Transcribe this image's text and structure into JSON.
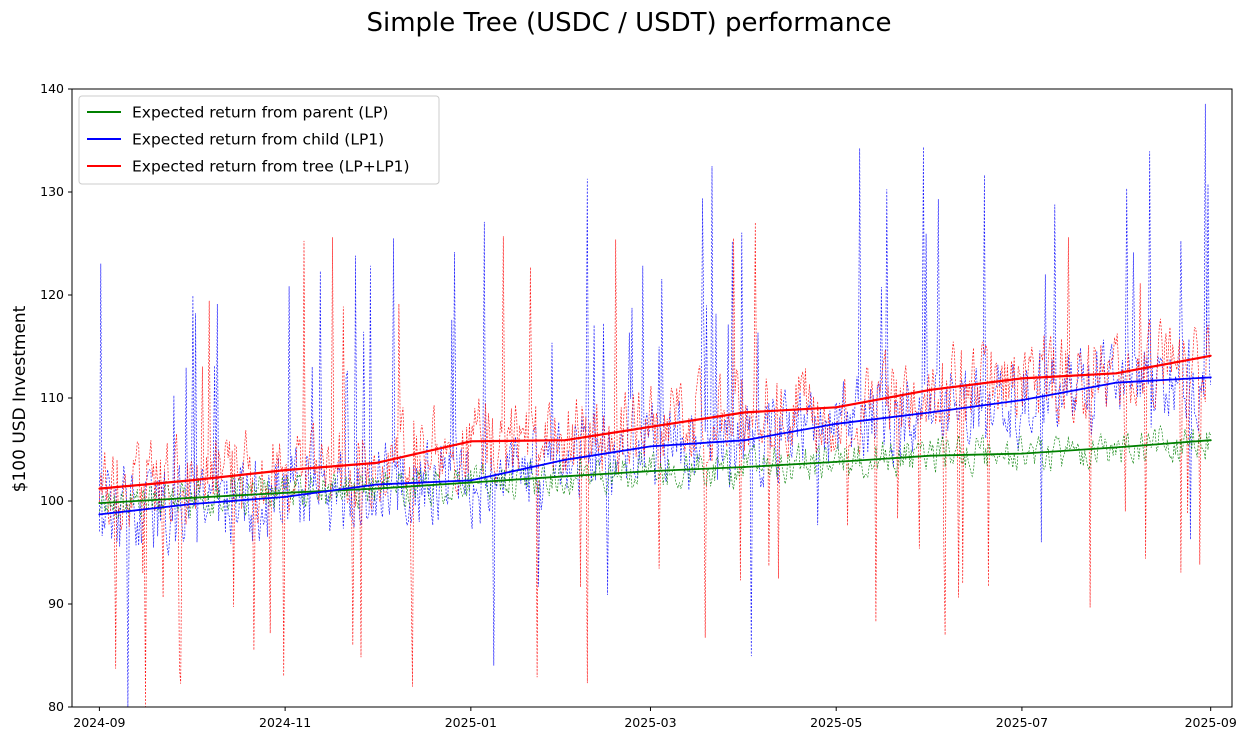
{
  "chart_data": {
    "type": "line",
    "title": "Simple Tree (USDC / USDT) performance",
    "xlabel": "",
    "ylabel": "$100 USD Investment",
    "xlim": [
      "2024-08-23",
      "2025-09-08"
    ],
    "ylim": [
      80,
      140
    ],
    "x_ticks": [
      "2024-09",
      "2024-11",
      "2025-01",
      "2025-03",
      "2025-05",
      "2025-07",
      "2025-09"
    ],
    "y_ticks": [
      80,
      90,
      100,
      110,
      120,
      130,
      140
    ],
    "grid": false,
    "legend_position": "top-left",
    "series": [
      {
        "name": "Expected return from parent (LP)",
        "color": "#008000",
        "x": [
          "2024-09-01",
          "2024-10-01",
          "2024-11-01",
          "2024-12-01",
          "2025-01-01",
          "2025-02-01",
          "2025-03-01",
          "2025-04-01",
          "2025-05-01",
          "2025-06-01",
          "2025-07-01",
          "2025-08-01",
          "2025-09-01"
        ],
        "values": [
          99.8,
          100.3,
          100.8,
          101.2,
          101.8,
          102.4,
          102.9,
          103.3,
          103.8,
          104.4,
          104.6,
          105.2,
          105.9
        ]
      },
      {
        "name": "Expected return from child (LP1)",
        "color": "#0000ff",
        "x": [
          "2024-09-01",
          "2024-10-01",
          "2024-11-01",
          "2024-12-01",
          "2025-01-01",
          "2025-02-01",
          "2025-03-01",
          "2025-04-01",
          "2025-05-01",
          "2025-06-01",
          "2025-07-01",
          "2025-08-01",
          "2025-09-01"
        ],
        "values": [
          98.7,
          99.7,
          100.4,
          101.6,
          102.0,
          104.0,
          105.3,
          105.9,
          107.5,
          108.6,
          109.8,
          111.5,
          112.0
        ]
      },
      {
        "name": "Expected return from tree (LP+LP1)",
        "color": "#ff0000",
        "x": [
          "2024-09-01",
          "2024-10-01",
          "2024-11-01",
          "2024-12-01",
          "2025-01-01",
          "2025-02-01",
          "2025-03-01",
          "2025-04-01",
          "2025-05-01",
          "2025-06-01",
          "2025-07-01",
          "2025-08-01",
          "2025-09-01"
        ],
        "values": [
          101.2,
          102.0,
          103.0,
          103.7,
          105.8,
          105.9,
          107.2,
          108.6,
          109.1,
          110.8,
          111.9,
          112.4,
          114.1
        ]
      }
    ]
  }
}
